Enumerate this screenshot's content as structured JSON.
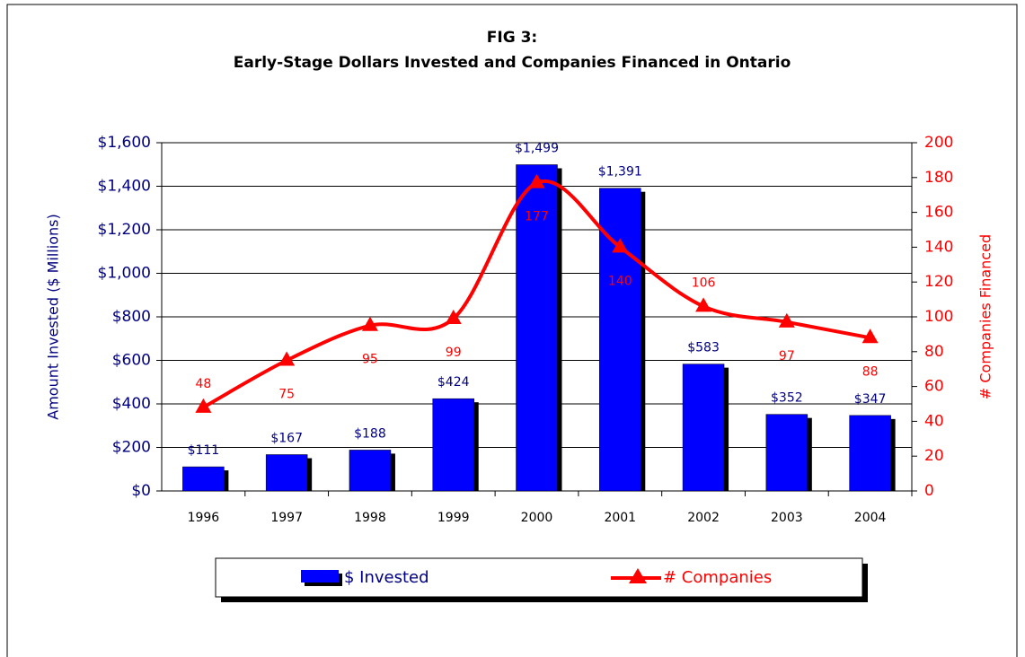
{
  "chart_data": {
    "type": "bar_line",
    "title": "FIG 3:",
    "subtitle": "Early-Stage Dollars Invested and Companies Financed in Ontario",
    "y_label": "Amount Invested ($ Millions)",
    "y2_label": "# Companies Financed",
    "categories": [
      "1996",
      "1997",
      "1998",
      "1999",
      "2000",
      "2001",
      "2002",
      "2003",
      "2004"
    ],
    "series": [
      {
        "name": "$ Invested",
        "color": "#0000ff",
        "type": "bar",
        "values": [
          111,
          167,
          188,
          424,
          1499,
          1391,
          583,
          352,
          347
        ],
        "value_labels": [
          "$111",
          "$167",
          "$188",
          "$424",
          "$1,499",
          "$1,391",
          "$583",
          "$352",
          "$347"
        ]
      },
      {
        "name": "# Companies",
        "color": "#ff0000",
        "type": "line",
        "axis": "y2",
        "values": [
          48,
          75,
          95,
          99,
          177,
          140,
          106,
          97,
          88
        ]
      }
    ],
    "ylim": [
      0,
      1600
    ],
    "yticks": [
      {
        "value": 0,
        "label": "$0"
      },
      {
        "value": 200,
        "label": "$200"
      },
      {
        "value": 400,
        "label": "$400"
      },
      {
        "value": 600,
        "label": "$600"
      },
      {
        "value": 800,
        "label": "$800"
      },
      {
        "value": 1000,
        "label": "$1,000"
      },
      {
        "value": 1200,
        "label": "$1,200"
      },
      {
        "value": 1400,
        "label": "$1,400"
      },
      {
        "value": 1600,
        "label": "$1,600"
      }
    ],
    "y2lim": [
      0,
      200
    ],
    "y2ticks": [
      0,
      20,
      40,
      60,
      80,
      100,
      120,
      140,
      160,
      180,
      200
    ],
    "grid": true,
    "legend": "bottom"
  }
}
